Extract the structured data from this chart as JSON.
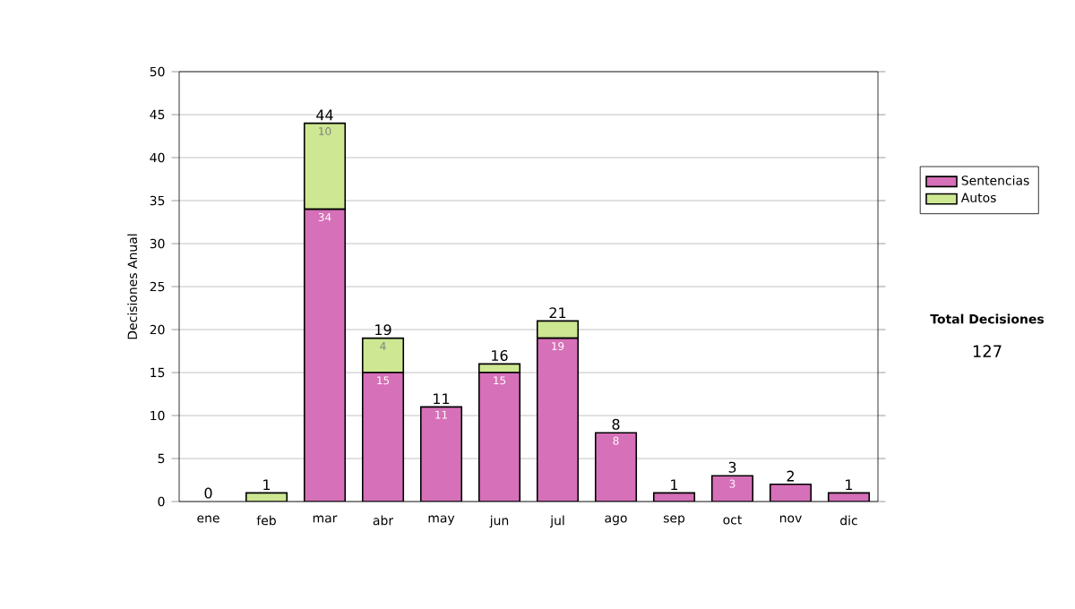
{
  "chart_data": {
    "type": "bar",
    "stacked": true,
    "ylabel": "Decisiones Anual",
    "categories": [
      "ene",
      "feb",
      "mar",
      "abr",
      "may",
      "jun",
      "jul",
      "ago",
      "sep",
      "oct",
      "nov",
      "dic"
    ],
    "series": [
      {
        "name": "Sentencias",
        "color": "#d670b8",
        "values": [
          0,
          0,
          34,
          15,
          11,
          15,
          19,
          8,
          1,
          3,
          2,
          1
        ],
        "value_labels": [
          null,
          null,
          "34",
          "15",
          "11",
          "15",
          "19",
          "8",
          null,
          "3",
          null,
          null
        ]
      },
      {
        "name": "Autos",
        "color": "#cde792",
        "values": [
          0,
          1,
          10,
          4,
          0,
          1,
          2,
          0,
          0,
          0,
          0,
          0
        ],
        "value_labels": [
          null,
          null,
          "10",
          "4",
          null,
          null,
          null,
          null,
          null,
          null,
          null,
          null
        ]
      }
    ],
    "totals": [
      "0",
      "1",
      "44",
      "19",
      "11",
      "16",
      "21",
      "8",
      "1",
      "3",
      "2",
      "1"
    ],
    "ylim": [
      0,
      50
    ],
    "yticks": [
      0,
      5,
      10,
      15,
      20,
      25,
      30,
      35,
      40,
      45,
      50
    ],
    "grid": "y",
    "legend": "right",
    "annotations": [
      "Total Decisiones",
      "127"
    ]
  }
}
